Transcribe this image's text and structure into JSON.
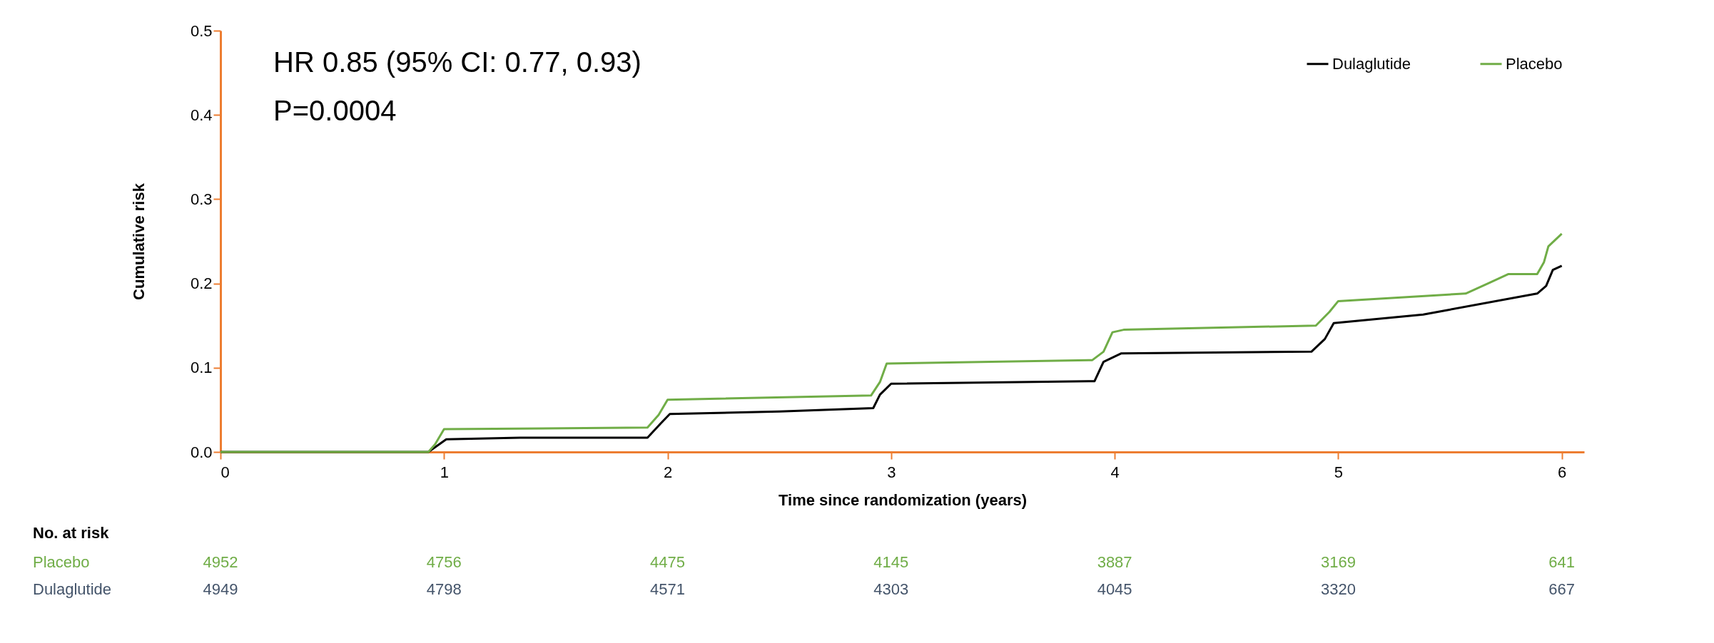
{
  "chart_data": {
    "type": "line",
    "xlabel": "Time since randomization (years)",
    "ylabel": "Cumulative risk",
    "xlim": [
      0,
      6.1
    ],
    "xticks": [
      0,
      1,
      2,
      3,
      4,
      5,
      6
    ],
    "ylim": [
      0,
      0.5
    ],
    "yticks": [
      {
        "value": 0,
        "label": "0.0"
      },
      0.1,
      0.2,
      0.3,
      0.4,
      0.5
    ],
    "legend": "top right",
    "series": [
      {
        "name": "Dulaglutide",
        "color": "#000000",
        "x": [
          0,
          0.93,
          1.01,
          1.34,
          1.91,
          1.97,
          2.01,
          2.5,
          2.92,
          2.95,
          3.0,
          3.91,
          3.95,
          4.03,
          4.88,
          4.94,
          4.98,
          5.38,
          5.48,
          5.89,
          5.93,
          5.96,
          6.0
        ],
        "values": [
          0,
          0,
          0.015,
          0.017,
          0.017,
          0.034,
          0.045,
          0.048,
          0.052,
          0.068,
          0.081,
          0.084,
          0.107,
          0.117,
          0.119,
          0.134,
          0.153,
          0.163,
          0.168,
          0.188,
          0.197,
          0.216,
          0.221
        ]
      },
      {
        "name": "Placebo",
        "color": "#70ad47",
        "x": [
          0,
          0.93,
          0.96,
          1.0,
          1.91,
          1.96,
          2.0,
          2.91,
          2.95,
          2.98,
          3.9,
          3.95,
          3.99,
          4.04,
          4.9,
          4.96,
          5.0,
          5.57,
          5.67,
          5.76,
          5.89,
          5.92,
          5.94,
          6.0
        ],
        "values": [
          0,
          0,
          0.009,
          0.027,
          0.029,
          0.044,
          0.062,
          0.067,
          0.083,
          0.105,
          0.109,
          0.119,
          0.142,
          0.145,
          0.15,
          0.166,
          0.179,
          0.188,
          0.2,
          0.211,
          0.211,
          0.225,
          0.244,
          0.259
        ]
      }
    ],
    "annotations": [
      "HR 0.85 (95% CI: 0.77, 0.93)",
      "P=0.0004",
      "No. at risk",
      "Placebo",
      "4952",
      "4756",
      "4475",
      "4145",
      "3887",
      "3169",
      "641",
      "Dulaglutide",
      "4949",
      "4798",
      "4571",
      "4303",
      "4045",
      "3320",
      "667"
    ]
  }
}
